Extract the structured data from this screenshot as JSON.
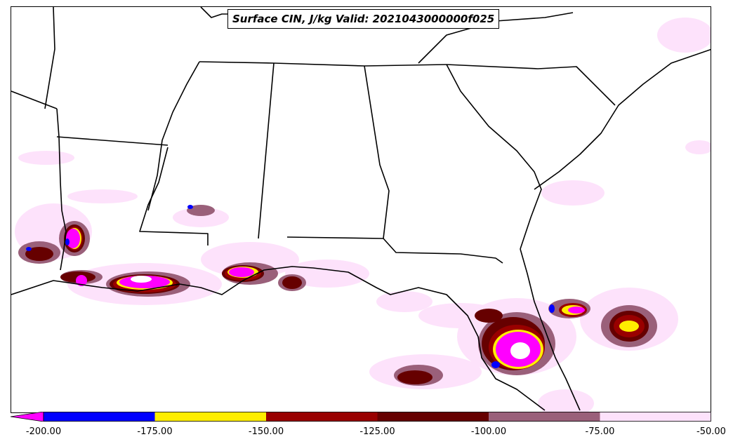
{
  "title": "Surface CIN, J/kg Valid: 2021043000000f025",
  "colorbar": {
    "extend_color": "#ff00ff",
    "segments": [
      {
        "from": -200,
        "to": -175,
        "color": "#0000ff"
      },
      {
        "from": -175,
        "to": -150,
        "color": "#ffee00"
      },
      {
        "from": -150,
        "to": -125,
        "color": "#990000"
      },
      {
        "from": -125,
        "to": -100,
        "color": "#660000"
      },
      {
        "from": -100,
        "to": -75,
        "color": "#9a607a"
      },
      {
        "from": -75,
        "to": -50,
        "color": "#fde2fb"
      }
    ],
    "ticks": [
      "-200.00",
      "-175.00",
      "-150.00",
      "-125.00",
      "-100.00",
      "-75.00",
      "-50.00"
    ]
  }
}
